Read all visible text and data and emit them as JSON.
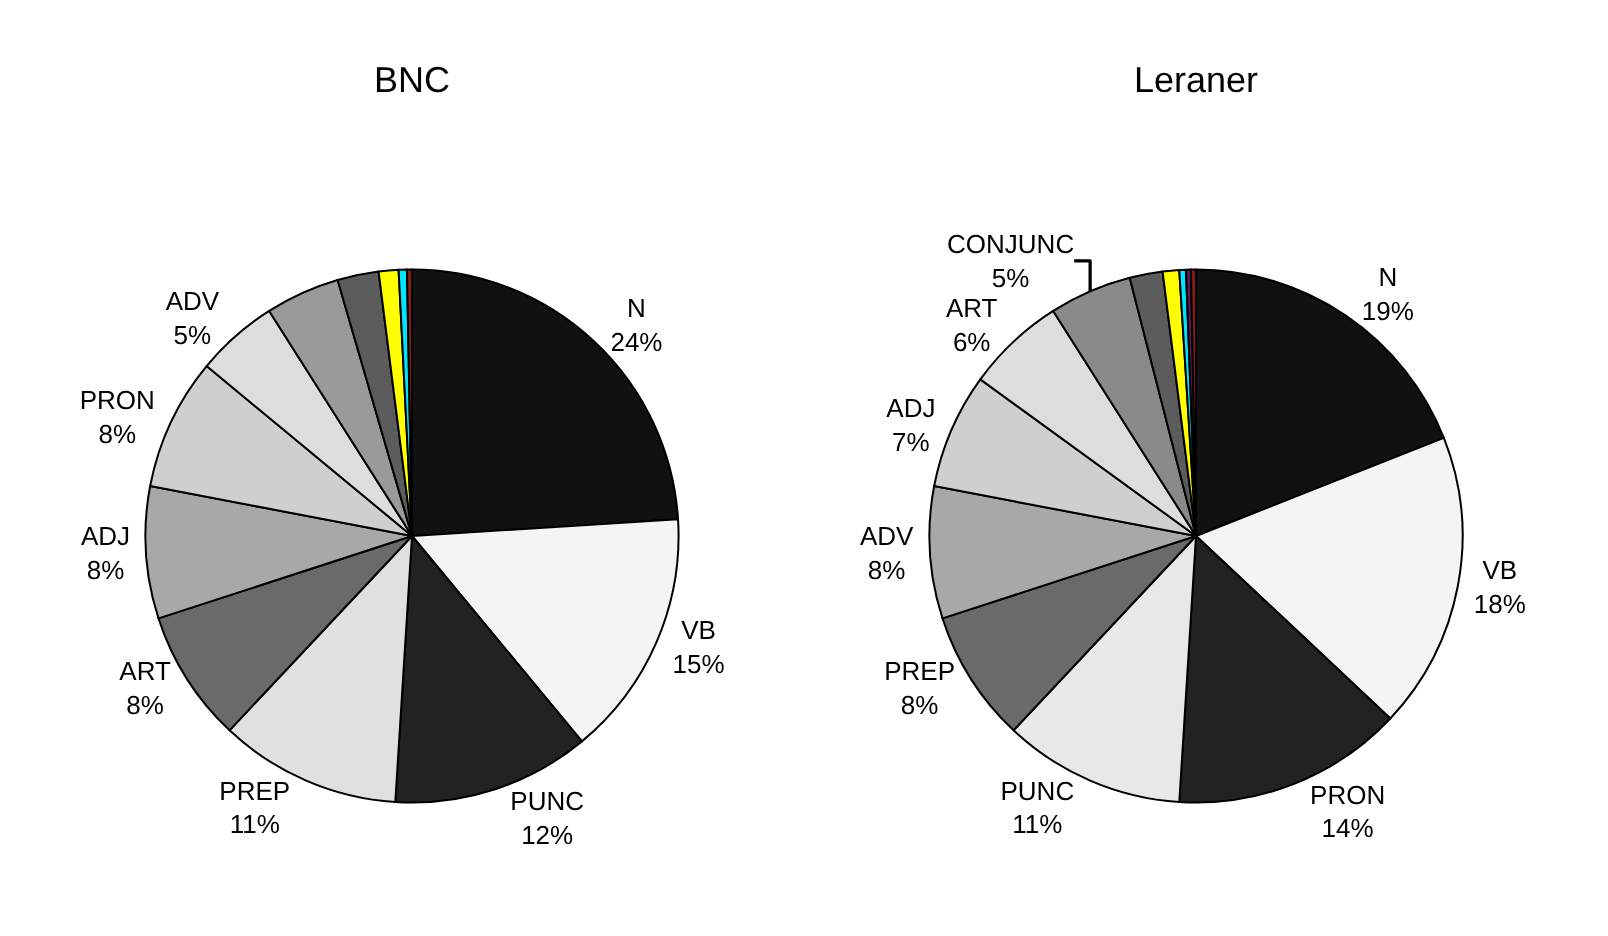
{
  "chart_data": [
    {
      "type": "pie",
      "title": "BNC",
      "categories": [
        "N",
        "VB",
        "PUNC",
        "PREP",
        "ART",
        "ADJ",
        "PRON",
        "ADV",
        null,
        null,
        null,
        null,
        null
      ],
      "values": [
        24,
        15,
        12,
        11,
        8,
        8,
        8,
        5,
        4.5,
        2.5,
        1.2,
        0.5,
        0.3
      ],
      "value_labels": [
        "24%",
        "15%",
        "12%",
        "11%",
        "8%",
        "8%",
        "8%",
        "5%",
        null,
        null,
        null,
        null,
        null
      ],
      "colors": [
        "#111111",
        "#f4f4f4",
        "#222222",
        "#e0e0e0",
        "#6a6a6a",
        "#a8a8a8",
        "#cfcfcf",
        "#dddddd",
        "#9a9a9a",
        "#5c5c5c",
        "#ffff00",
        "#00e5ff",
        "#8b1a1a"
      ],
      "legend": false
    },
    {
      "type": "pie",
      "title": "Leraner",
      "categories": [
        "N",
        "VB",
        "PRON",
        "PUNC",
        "PREP",
        "ADV",
        "ADJ",
        "ART",
        "CONJUNC",
        null,
        null,
        null,
        null,
        null
      ],
      "values": [
        19,
        18,
        14,
        11,
        8,
        8,
        7,
        6,
        5,
        2,
        1,
        0.4,
        0.3,
        0.3
      ],
      "value_labels": [
        "19%",
        "18%",
        "14%",
        "11%",
        "8%",
        "8%",
        "7%",
        "6%",
        "5%",
        null,
        null,
        null,
        null,
        null
      ],
      "colors": [
        "#111111",
        "#f4f4f4",
        "#222222",
        "#e8e8e8",
        "#6a6a6a",
        "#a8a8a8",
        "#cfcfcf",
        "#dddddd",
        "#8a8a8a",
        "#5c5c5c",
        "#ffff00",
        "#00e5ff",
        "#5a1a5a",
        "#8b1a1a"
      ],
      "legend": false
    }
  ]
}
